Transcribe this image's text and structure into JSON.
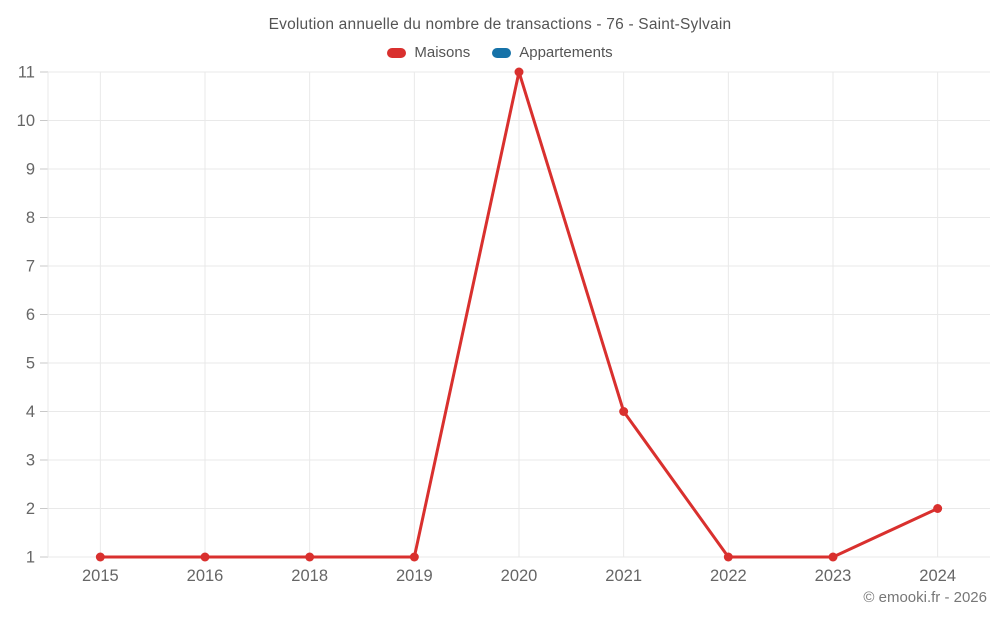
{
  "header": {
    "title": "Evolution annuelle du nombre de transactions - 76 - Saint-Sylvain"
  },
  "chart_data": {
    "type": "line",
    "title": "Evolution annuelle du nombre de transactions - 76 - Saint-Sylvain",
    "categories": [
      "2015",
      "2016",
      "2018",
      "2019",
      "2020",
      "2021",
      "2022",
      "2023",
      "2024"
    ],
    "series": [
      {
        "name": "Maisons",
        "color": "#d9302e",
        "values": [
          1,
          1,
          1,
          1,
          11,
          4,
          1,
          1,
          2
        ]
      },
      {
        "name": "Appartements",
        "color": "#1672a8",
        "values": []
      }
    ],
    "ylim": [
      1,
      11
    ],
    "yticks": [
      1,
      2,
      3,
      4,
      5,
      6,
      7,
      8,
      9,
      10,
      11
    ],
    "grid": true,
    "legend_position": "top",
    "xlabel": "",
    "ylabel": ""
  },
  "colors": {
    "grid": "#e9e9e9",
    "tick": "#c9c9c9",
    "axis_text": "#666666",
    "title_text": "#545454",
    "legend_text": "#555555",
    "copyright_text": "#777777",
    "background": "#ffffff"
  },
  "footer": {
    "copyright": "© emooki.fr - 2026"
  }
}
